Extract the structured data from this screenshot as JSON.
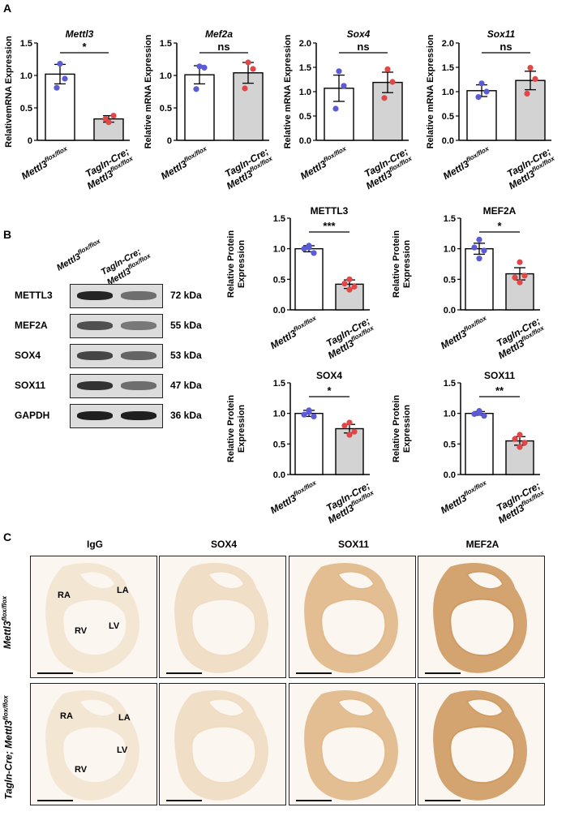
{
  "panels": {
    "a": "A",
    "b": "B",
    "c": "C"
  },
  "groups": {
    "ctrl_main": "Mettl3",
    "ctrl_sup": "flox/flox",
    "ko_line1": "Tagln-Cre;",
    "ko_main": "Mettl3",
    "ko_sup": "flox/flox"
  },
  "colors": {
    "ctrl_dot": "#5b5bd6",
    "ko_dot": "#e04848",
    "ko_bar": "#d3d3d3",
    "ctrl_bar": "#ffffff"
  },
  "mrna_charts": [
    {
      "title": "Mettl3",
      "ylabel": "RelativemRNA Expression",
      "ylim": [
        0,
        1.5
      ],
      "ticks": [
        "0",
        "0.5",
        "1.0",
        "1.5"
      ],
      "chart_data": {
        "type": "bar",
        "categories": [
          "Mettl3 flox/flox",
          "Tagln-Cre; Mettl3 flox/flox"
        ],
        "values": [
          1.02,
          0.33
        ],
        "errors": [
          0.15,
          0.05
        ],
        "points": [
          [
            1.18,
            0.95,
            0.81
          ],
          [
            0.28,
            0.38,
            0.33
          ]
        ],
        "significance": "*"
      }
    },
    {
      "title": "Mef2a",
      "ylabel": "Relative mRNA Expression",
      "ylim": [
        0,
        1.5
      ],
      "ticks": [
        "0",
        "0.5",
        "1.0",
        "1.5"
      ],
      "chart_data": {
        "type": "bar",
        "categories": [
          "Mettl3 flox/flox",
          "Tagln-Cre; Mettl3 flox/flox"
        ],
        "values": [
          1.01,
          1.04
        ],
        "errors": [
          0.14,
          0.16
        ],
        "points": [
          [
            1.14,
            1.12,
            0.79
          ],
          [
            1.2,
            1.1,
            0.8
          ]
        ],
        "significance": "ns"
      }
    },
    {
      "title": "Sox4",
      "ylabel": "Relative mRNA Expression",
      "ylim": [
        0,
        2.0
      ],
      "ticks": [
        "0.0",
        "0.5",
        "1.0",
        "1.5",
        "2.0"
      ],
      "chart_data": {
        "type": "bar",
        "categories": [
          "Mettl3 flox/flox",
          "Tagln-Cre; Mettl3 flox/flox"
        ],
        "values": [
          1.07,
          1.19
        ],
        "errors": [
          0.27,
          0.21
        ],
        "points": [
          [
            1.42,
            1.12,
            0.65
          ],
          [
            1.46,
            1.2,
            0.87
          ]
        ],
        "significance": "ns"
      }
    },
    {
      "title": "Sox11",
      "ylabel": "Relative mRNA Expression",
      "ylim": [
        0,
        2.0
      ],
      "ticks": [
        "0.0",
        "0.5",
        "1.0",
        "1.5",
        "2.0"
      ],
      "chart_data": {
        "type": "bar",
        "categories": [
          "Mettl3 flox/flox",
          "Tagln-Cre; Mettl3 flox/flox"
        ],
        "values": [
          1.02,
          1.23
        ],
        "errors": [
          0.12,
          0.19
        ],
        "points": [
          [
            1.17,
            1.0,
            0.89
          ],
          [
            1.49,
            1.26,
            0.96
          ]
        ],
        "significance": "ns"
      }
    }
  ],
  "protein_charts": [
    {
      "title": "METTL3",
      "ylabel1": "Relative Protein",
      "ylabel2": "Expression",
      "ylim": [
        0,
        1.5
      ],
      "ticks": [
        "0.0",
        "0.5",
        "1.0",
        "1.5"
      ],
      "chart_data": {
        "type": "bar",
        "categories": [
          "Mettl3 flox/flox",
          "Tagln-Cre; Mettl3 flox/flox"
        ],
        "values": [
          1.0,
          0.42
        ],
        "errors": [
          0.05,
          0.07
        ],
        "points": [
          [
            1.05,
            1.0,
            0.93,
            1.02
          ],
          [
            0.5,
            0.43,
            0.38,
            0.33
          ]
        ],
        "significance": "***"
      }
    },
    {
      "title": "MEF2A",
      "ylabel1": "Relative Protein",
      "ylabel2": "Expression",
      "ylim": [
        0,
        1.5
      ],
      "ticks": [
        "0.0",
        "0.5",
        "1.0",
        "1.5"
      ],
      "chart_data": {
        "type": "bar",
        "categories": [
          "Mettl3 flox/flox",
          "Tagln-Cre; Mettl3 flox/flox"
        ],
        "values": [
          1.0,
          0.59
        ],
        "errors": [
          0.09,
          0.1
        ],
        "points": [
          [
            1.15,
            1.02,
            0.97,
            0.84
          ],
          [
            0.78,
            0.53,
            0.56,
            0.45
          ]
        ],
        "significance": "*"
      }
    },
    {
      "title": "SOX4",
      "ylabel1": "Relative Protein",
      "ylabel2": "Expression",
      "ylim": [
        0,
        1.5
      ],
      "ticks": [
        "0.0",
        "0.5",
        "1.0",
        "1.5"
      ],
      "chart_data": {
        "type": "bar",
        "categories": [
          "Mettl3 flox/flox",
          "Tagln-Cre; Mettl3 flox/flox"
        ],
        "values": [
          1.0,
          0.75
        ],
        "errors": [
          0.05,
          0.07
        ],
        "points": [
          [
            1.05,
            0.98,
            0.95,
            1.02
          ],
          [
            0.85,
            0.8,
            0.7,
            0.65
          ]
        ],
        "significance": "*"
      }
    },
    {
      "title": "SOX11",
      "ylabel1": "Relative Protein",
      "ylabel2": "Expression",
      "ylim": [
        0,
        1.5
      ],
      "ticks": [
        "0.0",
        "0.5",
        "1.0",
        "1.5"
      ],
      "chart_data": {
        "type": "bar",
        "categories": [
          "Mettl3 flox/flox",
          "Tagln-Cre; Mettl3 flox/flox"
        ],
        "values": [
          1.0,
          0.55
        ],
        "errors": [
          0.03,
          0.07
        ],
        "points": [
          [
            1.04,
            0.99,
            0.96,
            1.01
          ],
          [
            0.65,
            0.58,
            0.52,
            0.45
          ]
        ],
        "significance": "**"
      }
    }
  ],
  "western": {
    "rows": [
      {
        "label": "METTL3",
        "kda": "72 kDa",
        "ctrl": 0.92,
        "ko": 0.55
      },
      {
        "label": "MEF2A",
        "kda": "55 kDa",
        "ctrl": 0.7,
        "ko": 0.5
      },
      {
        "label": "SOX4",
        "kda": "53 kDa",
        "ctrl": 0.75,
        "ko": 0.6
      },
      {
        "label": "SOX11",
        "kda": "47 kDa",
        "ctrl": 0.85,
        "ko": 0.55
      },
      {
        "label": "GAPDH",
        "kda": "36 kDa",
        "ctrl": 0.95,
        "ko": 0.95
      }
    ]
  },
  "ihc": {
    "columns": [
      "IgG",
      "SOX4",
      "SOX11",
      "MEF2A"
    ],
    "row_ctrl_main": "Mettl3",
    "row_ctrl_sup": "flox/flox",
    "row_ko_main": "Tagln-Cre; Mettl3",
    "row_ko_sup": "flox/flox",
    "chambers": {
      "ra": "RA",
      "la": "LA",
      "rv": "RV",
      "lv": "LV"
    },
    "stain": [
      "#f3e6d2",
      "#efdcc2",
      "#e2b98a",
      "#cf9b63"
    ]
  }
}
